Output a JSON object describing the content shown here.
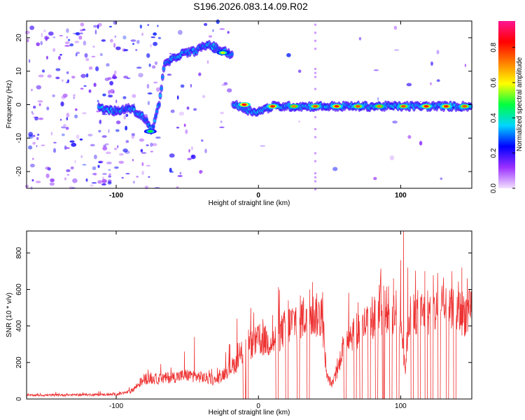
{
  "title": "S196.2026.083.14.09.R02",
  "colors": {
    "snr_line": "#ee3333",
    "frame": "#000000",
    "background": "#ffffff",
    "colormap": [
      "#f2e0ff",
      "#9b30ff",
      "#0000ff",
      "#00d5ff",
      "#00ff40",
      "#ffff00",
      "#ff8000",
      "#ff0000",
      "#ff1493"
    ]
  },
  "chart_data": [
    {
      "type": "heatmap",
      "id": "spectrogram",
      "xlabel": "Height of straight line (km)",
      "ylabel": "Frequency (Hz)",
      "xlim": [
        -163,
        150
      ],
      "ylim": [
        -25,
        25
      ],
      "xticks": [
        -100,
        0,
        100
      ],
      "yticks": [
        -20,
        -10,
        0,
        10,
        20
      ],
      "xticklabels": [
        "-100",
        "0",
        "100"
      ],
      "yticklabels": [
        "-20",
        "-10",
        "0",
        "10",
        "20"
      ],
      "colorbar": {
        "label": "Normalized spectral amplitude",
        "range": [
          0,
          0.95
        ],
        "ticks": [
          0.0,
          0.2,
          0.4,
          0.6,
          0.8
        ],
        "ticklabels": [
          "0.0",
          "0.2",
          "0.4",
          "0.6",
          "0.8"
        ]
      },
      "ridge": [
        {
          "x": -113,
          "freq": -1
        },
        {
          "x": -100,
          "freq": -2
        },
        {
          "x": -90,
          "freq": -1
        },
        {
          "x": -80,
          "freq": -4
        },
        {
          "x": -75,
          "freq": -8
        },
        {
          "x": -70,
          "freq": 0
        },
        {
          "x": -66,
          "freq": 12
        },
        {
          "x": -55,
          "freq": 15
        },
        {
          "x": -45,
          "freq": 16
        },
        {
          "x": -35,
          "freq": 18
        },
        {
          "x": -25,
          "freq": 16
        },
        {
          "x": -18,
          "freq": 15
        },
        {
          "x": -17,
          "freq": 0
        },
        {
          "x": -5,
          "freq": -2
        },
        {
          "x": 0,
          "freq": -2
        },
        {
          "x": 10,
          "freq": -0.5
        },
        {
          "x": 50,
          "freq": -0.5
        },
        {
          "x": 100,
          "freq": -0.5
        },
        {
          "x": 150,
          "freq": -0.5
        }
      ],
      "peaks": [
        {
          "x": -10,
          "freq": 0,
          "amp": 0.9
        },
        {
          "x": -25,
          "freq": 15.5,
          "amp": 0.6
        },
        {
          "x": -76,
          "freq": -8,
          "amp": 0.5
        },
        {
          "x": 10,
          "freq": -0.5,
          "amp": 0.85
        },
        {
          "x": 25,
          "freq": -0.5,
          "amp": 0.75
        },
        {
          "x": 40,
          "freq": -0.5,
          "amp": 0.8
        },
        {
          "x": 55,
          "freq": -0.5,
          "amp": 0.85
        },
        {
          "x": 70,
          "freq": -0.5,
          "amp": 0.8
        },
        {
          "x": 85,
          "freq": -0.5,
          "amp": 0.75
        },
        {
          "x": 102,
          "freq": -0.5,
          "amp": 0.8
        },
        {
          "x": 118,
          "freq": -0.5,
          "amp": 0.85
        },
        {
          "x": 132,
          "freq": -0.5,
          "amp": 0.85
        },
        {
          "x": 145,
          "freq": -0.5,
          "amp": 0.8
        }
      ],
      "vertical_streak_x": [
        40
      ]
    },
    {
      "type": "line",
      "id": "snr",
      "xlabel": "Height of straight line (km)",
      "ylabel": "SNR (10 * v/v)",
      "xlim": [
        -163,
        150
      ],
      "ylim": [
        0,
        920
      ],
      "xticks": [
        -100,
        0,
        100
      ],
      "yticks": [
        0,
        200,
        400,
        600,
        800
      ],
      "xticklabels": [
        "-100",
        "0",
        "100"
      ],
      "yticklabels": [
        "0",
        "200",
        "400",
        "600",
        "800"
      ],
      "baseline": [
        {
          "x": -163,
          "y": 20
        },
        {
          "x": -100,
          "y": 25
        },
        {
          "x": -90,
          "y": 40
        },
        {
          "x": -80,
          "y": 110
        },
        {
          "x": -70,
          "y": 110
        },
        {
          "x": -60,
          "y": 120
        },
        {
          "x": -50,
          "y": 130
        },
        {
          "x": -40,
          "y": 120
        },
        {
          "x": -30,
          "y": 100
        },
        {
          "x": -20,
          "y": 170
        },
        {
          "x": -15,
          "y": 200
        },
        {
          "x": -10,
          "y": 270
        },
        {
          "x": 0,
          "y": 320
        },
        {
          "x": 10,
          "y": 310
        },
        {
          "x": 20,
          "y": 400
        },
        {
          "x": 30,
          "y": 450
        },
        {
          "x": 40,
          "y": 460
        },
        {
          "x": 45,
          "y": 440
        },
        {
          "x": 48,
          "y": 120
        },
        {
          "x": 52,
          "y": 80
        },
        {
          "x": 56,
          "y": 160
        },
        {
          "x": 60,
          "y": 330
        },
        {
          "x": 70,
          "y": 380
        },
        {
          "x": 80,
          "y": 440
        },
        {
          "x": 90,
          "y": 490
        },
        {
          "x": 100,
          "y": 470
        },
        {
          "x": 103,
          "y": 150
        },
        {
          "x": 106,
          "y": 460
        },
        {
          "x": 120,
          "y": 480
        },
        {
          "x": 150,
          "y": 470
        }
      ],
      "dropouts_x": [
        -10,
        -8,
        13,
        20,
        28,
        35,
        61,
        68,
        72,
        78,
        83,
        88,
        93,
        98,
        108,
        113,
        118,
        122,
        127,
        133,
        138
      ],
      "spikes": [
        {
          "x": -45,
          "y": 340
        },
        {
          "x": -52,
          "y": 260
        },
        {
          "x": -20,
          "y": 300
        },
        {
          "x": -15,
          "y": 440
        },
        {
          "x": -7,
          "y": 380
        },
        {
          "x": 5,
          "y": 400
        },
        {
          "x": 10,
          "y": 460
        },
        {
          "x": 21,
          "y": 540
        },
        {
          "x": 36,
          "y": 600
        },
        {
          "x": 38,
          "y": 640
        },
        {
          "x": 44,
          "y": 540
        },
        {
          "x": 70,
          "y": 530
        },
        {
          "x": 80,
          "y": 560
        },
        {
          "x": 88,
          "y": 620
        },
        {
          "x": 95,
          "y": 660
        },
        {
          "x": 100,
          "y": 760
        },
        {
          "x": 102,
          "y": 920
        },
        {
          "x": 105,
          "y": 720
        },
        {
          "x": 117,
          "y": 700
        },
        {
          "x": 126,
          "y": 690
        },
        {
          "x": 136,
          "y": 700
        },
        {
          "x": 143,
          "y": 720
        }
      ]
    }
  ]
}
